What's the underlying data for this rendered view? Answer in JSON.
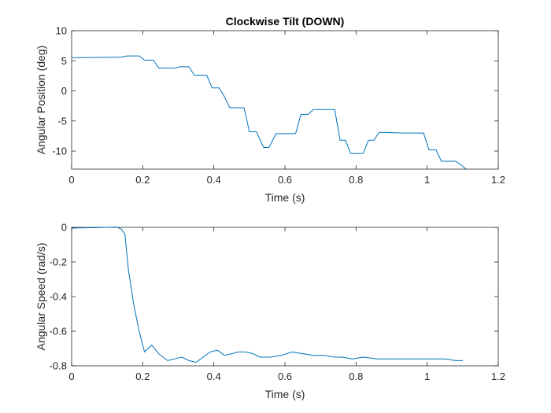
{
  "chart_data": [
    {
      "type": "line",
      "title": "Clockwise Tilt (DOWN)",
      "xlabel": "Time (s)",
      "ylabel": "Angular Position (deg)",
      "xlim": [
        0,
        1.2
      ],
      "ylim": [
        -13,
        10
      ],
      "xticks": [
        0,
        0.2,
        0.4,
        0.6,
        0.8,
        1,
        1.2
      ],
      "xtick_labels": [
        "0",
        "0.2",
        "0.4",
        "0.6",
        "0.8",
        "1",
        "1.2"
      ],
      "yticks": [
        10,
        5,
        0,
        -5,
        -10
      ],
      "ytick_labels": [
        "10",
        "5",
        "0",
        "-5",
        "-10"
      ],
      "grid": false,
      "color": "#0072BD",
      "series": [
        {
          "x": [
            0,
            0.14,
            0.155,
            0.19,
            0.205,
            0.23,
            0.245,
            0.29,
            0.305,
            0.33,
            0.345,
            0.38,
            0.395,
            0.415,
            0.43,
            0.445,
            0.485,
            0.5,
            0.52,
            0.54,
            0.555,
            0.575,
            0.59,
            0.63,
            0.645,
            0.665,
            0.68,
            0.695,
            0.74,
            0.755,
            0.77,
            0.785,
            0.82,
            0.835,
            0.85,
            0.865,
            0.88,
            0.93,
            0.945,
            0.99,
            1.005,
            1.025,
            1.04,
            1.08,
            1.095,
            1.11
          ],
          "y": [
            5.5,
            5.6,
            5.8,
            5.8,
            5.1,
            5.1,
            3.8,
            3.8,
            4.0,
            4.0,
            2.6,
            2.6,
            0.5,
            0.5,
            -1.0,
            -2.8,
            -2.8,
            -6.8,
            -6.8,
            -9.4,
            -9.4,
            -7.1,
            -7.1,
            -7.1,
            -3.9,
            -3.9,
            -3.1,
            -3.1,
            -3.1,
            -8.2,
            -8.2,
            -10.4,
            -10.4,
            -8.2,
            -8.2,
            -6.9,
            -6.9,
            -7.0,
            -7.0,
            -7.0,
            -9.8,
            -9.8,
            -11.7,
            -11.7,
            -12.3,
            -13.0
          ]
        }
      ]
    },
    {
      "type": "line",
      "title": "",
      "xlabel": "Time (s)",
      "ylabel": "Angular Speed (rad/s)",
      "xlim": [
        0,
        1.2
      ],
      "ylim": [
        -0.8,
        0
      ],
      "xticks": [
        0,
        0.2,
        0.4,
        0.6,
        0.8,
        1,
        1.2
      ],
      "xtick_labels": [
        "0",
        "0.2",
        "0.4",
        "0.6",
        "0.8",
        "1",
        "1.2"
      ],
      "yticks": [
        0,
        -0.2,
        -0.4,
        -0.6,
        -0.8
      ],
      "ytick_labels": [
        "0",
        "-0.2",
        "-0.4",
        "-0.6",
        "-0.8"
      ],
      "grid": false,
      "color": "#0072BD",
      "series": [
        {
          "x": [
            0,
            0.03,
            0.06,
            0.1,
            0.125,
            0.14,
            0.15,
            0.16,
            0.175,
            0.19,
            0.205,
            0.225,
            0.245,
            0.27,
            0.29,
            0.31,
            0.33,
            0.35,
            0.37,
            0.39,
            0.41,
            0.43,
            0.45,
            0.47,
            0.49,
            0.51,
            0.53,
            0.56,
            0.59,
            0.62,
            0.65,
            0.68,
            0.71,
            0.74,
            0.76,
            0.79,
            0.82,
            0.86,
            0.9,
            0.94,
            0.98,
            1.02,
            1.05,
            1.08,
            1.1
          ],
          "y": [
            -0.005,
            -0.003,
            -0.002,
            0.0,
            0.002,
            -0.01,
            -0.04,
            -0.25,
            -0.45,
            -0.6,
            -0.72,
            -0.68,
            -0.73,
            -0.77,
            -0.76,
            -0.75,
            -0.77,
            -0.78,
            -0.75,
            -0.72,
            -0.71,
            -0.74,
            -0.73,
            -0.72,
            -0.72,
            -0.73,
            -0.75,
            -0.75,
            -0.74,
            -0.72,
            -0.73,
            -0.74,
            -0.74,
            -0.75,
            -0.75,
            -0.76,
            -0.75,
            -0.76,
            -0.76,
            -0.76,
            -0.76,
            -0.76,
            -0.76,
            -0.77,
            -0.77
          ]
        }
      ]
    }
  ]
}
